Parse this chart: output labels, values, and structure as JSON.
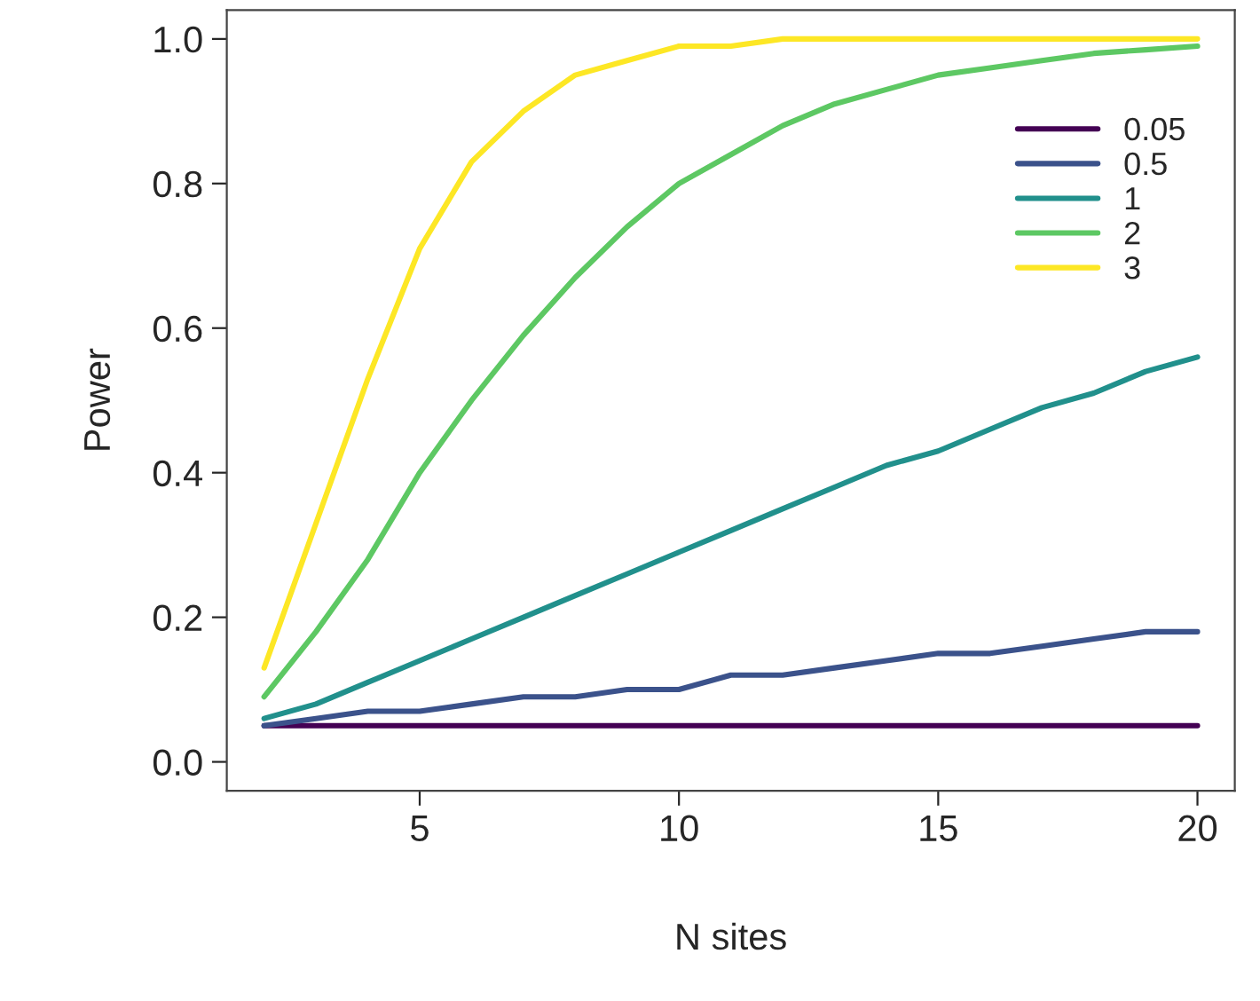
{
  "chart_data": {
    "type": "line",
    "xlabel": "N sites",
    "ylabel": "Power",
    "x": [
      2,
      3,
      4,
      5,
      6,
      7,
      8,
      9,
      10,
      11,
      12,
      13,
      14,
      15,
      16,
      17,
      18,
      19,
      20
    ],
    "xlim": [
      1.28,
      20.72
    ],
    "xticks": [
      5,
      10,
      15,
      20
    ],
    "ylim": [
      -0.04,
      1.04
    ],
    "yticks": [
      {
        "value": 0,
        "label": "0.0"
      },
      {
        "value": 0.2,
        "label": "0.2"
      },
      {
        "value": 0.4,
        "label": "0.4"
      },
      {
        "value": 0.6,
        "label": "0.6"
      },
      {
        "value": 0.8,
        "label": "0.8"
      },
      {
        "value": 1.0,
        "label": "1.0"
      }
    ],
    "grid": false,
    "legend": "top right",
    "marker": "none",
    "line_style": "solid",
    "series": [
      {
        "name": "0.05",
        "color": "#440154",
        "values": [
          0.05,
          0.05,
          0.05,
          0.05,
          0.05,
          0.05,
          0.05,
          0.05,
          0.05,
          0.05,
          0.05,
          0.05,
          0.05,
          0.05,
          0.05,
          0.05,
          0.05,
          0.05,
          0.05
        ]
      },
      {
        "name": "0.5",
        "color": "#3b528b",
        "values": [
          0.05,
          0.06,
          0.07,
          0.07,
          0.08,
          0.09,
          0.09,
          0.1,
          0.1,
          0.12,
          0.12,
          0.13,
          0.14,
          0.15,
          0.15,
          0.16,
          0.17,
          0.18,
          0.18
        ]
      },
      {
        "name": "1",
        "color": "#21908c",
        "values": [
          0.06,
          0.08,
          0.11,
          0.14,
          0.17,
          0.2,
          0.23,
          0.26,
          0.29,
          0.32,
          0.35,
          0.38,
          0.41,
          0.43,
          0.46,
          0.49,
          0.51,
          0.54,
          0.56
        ]
      },
      {
        "name": "2",
        "color": "#5dc863",
        "values": [
          0.09,
          0.18,
          0.28,
          0.4,
          0.5,
          0.59,
          0.67,
          0.74,
          0.8,
          0.84,
          0.88,
          0.91,
          0.93,
          0.95,
          0.96,
          0.97,
          0.98,
          0.985,
          0.99
        ]
      },
      {
        "name": "3",
        "color": "#fde725",
        "values": [
          0.13,
          0.33,
          0.53,
          0.71,
          0.83,
          0.9,
          0.95,
          0.97,
          0.99,
          0.99,
          1.0,
          1.0,
          1.0,
          1.0,
          1.0,
          1.0,
          1.0,
          1.0,
          1.0
        ]
      }
    ]
  }
}
